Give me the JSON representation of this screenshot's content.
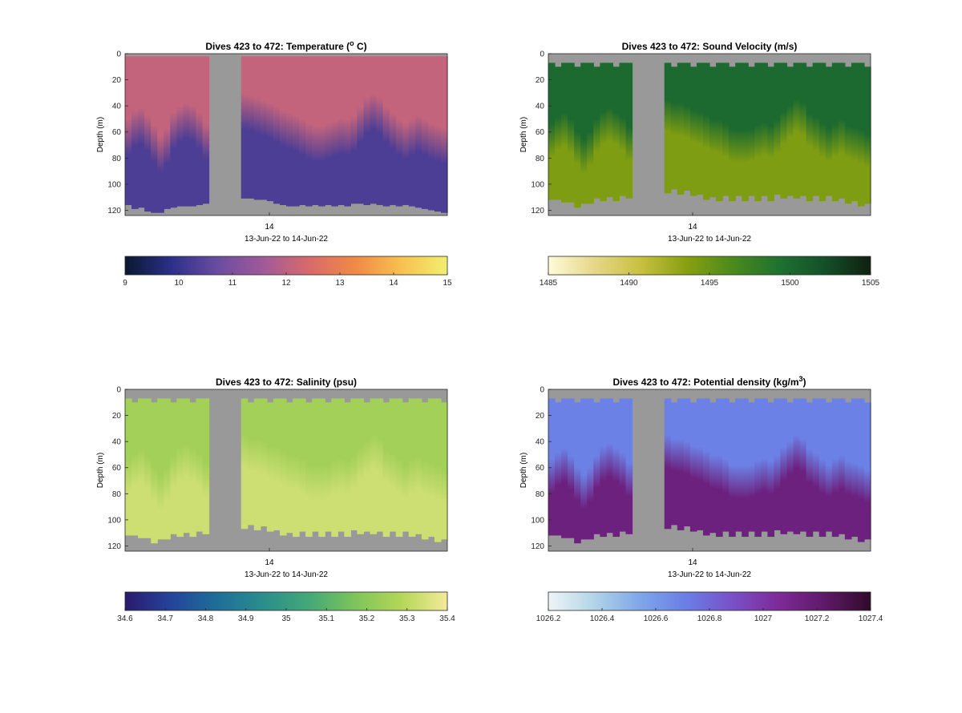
{
  "figure": {
    "panels": [
      {
        "title": "Dives 423 to 472: Temperature (",
        "title_sup": "o",
        "title_end": " C)",
        "ylabel": "Depth (m)",
        "xlabel": "13-Jun-22 to 14-Jun-22",
        "xtick": "14",
        "yticks": [
          "0",
          "20",
          "40",
          "60",
          "80",
          "100",
          "120"
        ],
        "colorbar_ticks": [
          "9",
          "10",
          "11",
          "12",
          "13",
          "14",
          "15"
        ],
        "colormap": [
          "#0a1830",
          "#2c2f8a",
          "#6a4ca0",
          "#a05a9a",
          "#d86a6a",
          "#f08a45",
          "#f8c050",
          "#f0f070"
        ]
      },
      {
        "title": "Dives 423 to 472: Sound Velocity (m/s)",
        "title_sup": "",
        "title_end": "",
        "ylabel": "Depth (m)",
        "xlabel": "13-Jun-22 to 14-Jun-22",
        "xtick": "14",
        "yticks": [
          "0",
          "20",
          "40",
          "60",
          "80",
          "100",
          "120"
        ],
        "colorbar_ticks": [
          "1485",
          "1490",
          "1495",
          "1500",
          "1505"
        ],
        "colormap": [
          "#fefbd8",
          "#e6d788",
          "#c8c040",
          "#88a010",
          "#4c8a1c",
          "#1e7230",
          "#14502a",
          "#10200f"
        ]
      },
      {
        "title": "Dives 423 to 472: Salinity (psu)",
        "title_sup": "",
        "title_end": "",
        "ylabel": "Depth (m)",
        "xlabel": "13-Jun-22 to 14-Jun-22",
        "xtick": "14",
        "yticks": [
          "0",
          "20",
          "40",
          "60",
          "80",
          "100",
          "120"
        ],
        "colorbar_ticks": [
          "34.6",
          "34.7",
          "34.8",
          "34.9",
          "35",
          "35.1",
          "35.2",
          "35.3",
          "35.4"
        ],
        "colormap": [
          "#2a1a6e",
          "#24449a",
          "#1e6e98",
          "#2a8e8c",
          "#44a878",
          "#7ec45a",
          "#b4d658",
          "#f4ea9a"
        ]
      },
      {
        "title": "Dives 423 to 472: Potential density (kg/m",
        "title_sup": "3",
        "title_end": ")",
        "ylabel": "Depth (m)",
        "xlabel": "13-Jun-22 to 14-Jun-22",
        "xtick": "14",
        "yticks": [
          "0",
          "20",
          "40",
          "60",
          "80",
          "100",
          "120"
        ],
        "colorbar_ticks": [
          "1026.2",
          "1026.4",
          "1026.6",
          "1026.8",
          "1027",
          "1027.2",
          "1027.4"
        ],
        "colormap": [
          "#eef4f6",
          "#b2d4e8",
          "#7ea6e8",
          "#6a7ee6",
          "#7a50c8",
          "#7e2a98",
          "#5e1a68",
          "#300a2a"
        ]
      }
    ]
  },
  "chart_data": [
    {
      "type": "heatmap",
      "title": "Dives 423 to 472: Temperature (o C)",
      "xlabel": "13-Jun-22 to 14-Jun-22",
      "ylabel": "Depth (m)",
      "ylim": [
        0,
        124
      ],
      "y_reversed": true,
      "x_ticks": [
        "14"
      ],
      "color_range": [
        9,
        15
      ],
      "surface_value": 12.1,
      "deep_value": 10.3,
      "gap_value": null,
      "dives": [
        {
          "thermo": 55,
          "max_depth": 116
        },
        {
          "thermo": 48,
          "max_depth": 119
        },
        {
          "thermo": 46,
          "max_depth": 118
        },
        {
          "thermo": 52,
          "max_depth": 121
        },
        {
          "thermo": 60,
          "max_depth": 122
        },
        {
          "thermo": 68,
          "max_depth": 122
        },
        {
          "thermo": 62,
          "max_depth": 119
        },
        {
          "thermo": 50,
          "max_depth": 118
        },
        {
          "thermo": 45,
          "max_depth": 117
        },
        {
          "thermo": 42,
          "max_depth": 117
        },
        {
          "thermo": 44,
          "max_depth": 117
        },
        {
          "thermo": 50,
          "max_depth": 116
        },
        {
          "thermo": 58,
          "max_depth": 115
        },
        {
          "gap": true
        },
        {
          "gap": true
        },
        {
          "gap": true
        },
        {
          "gap": true
        },
        {
          "gap": true
        },
        {
          "thermo": 35,
          "max_depth": 111
        },
        {
          "thermo": 36,
          "max_depth": 111
        },
        {
          "thermo": 38,
          "max_depth": 112
        },
        {
          "thermo": 40,
          "max_depth": 112
        },
        {
          "thermo": 42,
          "max_depth": 113
        },
        {
          "thermo": 45,
          "max_depth": 115
        },
        {
          "thermo": 48,
          "max_depth": 116
        },
        {
          "thermo": 50,
          "max_depth": 117
        },
        {
          "thermo": 52,
          "max_depth": 117
        },
        {
          "thermo": 55,
          "max_depth": 116
        },
        {
          "thermo": 58,
          "max_depth": 117
        },
        {
          "thermo": 60,
          "max_depth": 116
        },
        {
          "thermo": 60,
          "max_depth": 117
        },
        {
          "thermo": 58,
          "max_depth": 116
        },
        {
          "thermo": 56,
          "max_depth": 117
        },
        {
          "thermo": 54,
          "max_depth": 116
        },
        {
          "thermo": 55,
          "max_depth": 117
        },
        {
          "thermo": 52,
          "max_depth": 115
        },
        {
          "thermo": 45,
          "max_depth": 115
        },
        {
          "thermo": 38,
          "max_depth": 116
        },
        {
          "thermo": 35,
          "max_depth": 115
        },
        {
          "thermo": 38,
          "max_depth": 116
        },
        {
          "thermo": 45,
          "max_depth": 117
        },
        {
          "thermo": 50,
          "max_depth": 116
        },
        {
          "thermo": 55,
          "max_depth": 117
        },
        {
          "thermo": 58,
          "max_depth": 116
        },
        {
          "thermo": 55,
          "max_depth": 117
        },
        {
          "thermo": 52,
          "max_depth": 118
        },
        {
          "thermo": 55,
          "max_depth": 119
        },
        {
          "thermo": 58,
          "max_depth": 120
        },
        {
          "thermo": 60,
          "max_depth": 121
        },
        {
          "thermo": 62,
          "max_depth": 122
        }
      ]
    },
    {
      "type": "heatmap",
      "title": "Dives 423 to 472: Sound Velocity (m/s)",
      "xlabel": "13-Jun-22 to 14-Jun-22",
      "ylabel": "Depth (m)",
      "ylim": [
        0,
        124
      ],
      "y_reversed": true,
      "x_ticks": [
        "14"
      ],
      "color_range": [
        1485,
        1505
      ],
      "surface_value": 1500,
      "deep_value": 1494
    },
    {
      "type": "heatmap",
      "title": "Dives 423 to 472: Salinity (psu)",
      "xlabel": "13-Jun-22 to 14-Jun-22",
      "ylabel": "Depth (m)",
      "ylim": [
        0,
        124
      ],
      "y_reversed": true,
      "x_ticks": [
        "14"
      ],
      "color_range": [
        34.6,
        35.4
      ],
      "surface_value": 35.25,
      "deep_value": 35.33
    },
    {
      "type": "heatmap",
      "title": "Dives 423 to 472: Potential density (kg/m3)",
      "xlabel": "13-Jun-22 to 14-Jun-22",
      "ylabel": "Depth (m)",
      "ylim": [
        0,
        124
      ],
      "y_reversed": true,
      "x_ticks": [
        "14"
      ],
      "color_range": [
        1026.2,
        1027.4
      ],
      "surface_value": 1026.7,
      "deep_value": 1027.15
    }
  ]
}
